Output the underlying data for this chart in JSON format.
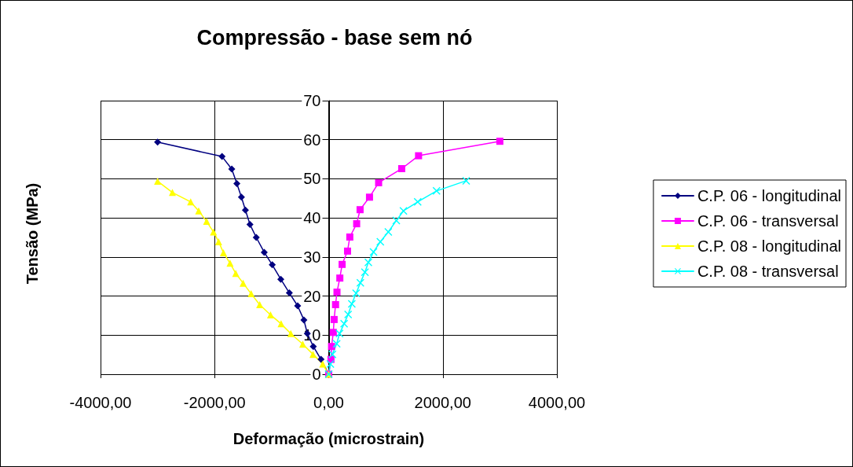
{
  "chart_data": {
    "type": "line",
    "title": "Compressão - base sem nó",
    "xlabel": "Deformação (microstrain)",
    "ylabel": "Tensão (MPa)",
    "xlim": [
      -4000,
      4000
    ],
    "xticks": [
      {
        "value": -4000,
        "label": "-4000,00"
      },
      {
        "value": -2000,
        "label": "-2000,00"
      },
      {
        "value": 0,
        "label": "0,00"
      },
      {
        "value": 2000,
        "label": "2000,00"
      },
      {
        "value": 4000,
        "label": "4000,00"
      }
    ],
    "ylim": [
      0,
      70
    ],
    "yticks": [
      0,
      10,
      20,
      30,
      40,
      50,
      60,
      70
    ],
    "grid": true,
    "legend": "right",
    "line_style": "solid",
    "series": [
      {
        "name": "C.P. 06 - longitudinal",
        "color": "#000080",
        "marker": "diamond",
        "x": [
          -3000,
          -1870,
          -1700,
          -1610,
          -1530,
          -1460,
          -1380,
          -1270,
          -1130,
          -990,
          -840,
          -690,
          -545,
          -435,
          -375,
          -270,
          -135,
          0
        ],
        "values": [
          59.4,
          55.7,
          52.5,
          48.8,
          45.3,
          42,
          38.3,
          35,
          31.2,
          28,
          24.3,
          20.8,
          17.5,
          13.9,
          10.4,
          7.1,
          3.8,
          0
        ]
      },
      {
        "name": "C.P. 06 - transversal",
        "color": "#ff00ff",
        "marker": "square",
        "x": [
          3000,
          1575,
          1280,
          875,
          715,
          550,
          490,
          370,
          330,
          235,
          195,
          145,
          120,
          95,
          80,
          50,
          40,
          0
        ],
        "values": [
          59.6,
          55.9,
          52.6,
          49,
          45.3,
          42.1,
          38.5,
          35.1,
          31.5,
          28.1,
          24.6,
          21,
          17.8,
          14,
          10.7,
          7.1,
          3.8,
          0
        ]
      },
      {
        "name": "C.P. 08 - longitudinal",
        "color": "#ffff00",
        "marker": "triangle",
        "x": [
          -3000,
          -2740,
          -2420,
          -2280,
          -2140,
          -2020,
          -1930,
          -1845,
          -1730,
          -1630,
          -1500,
          -1360,
          -1210,
          -1020,
          -835,
          -665,
          -455,
          -275,
          -105,
          0
        ],
        "values": [
          49.4,
          46.5,
          44.1,
          41.8,
          39.1,
          36.4,
          33.9,
          31.1,
          28.4,
          25.8,
          23.3,
          20.6,
          17.8,
          15.2,
          12.9,
          10.4,
          7.7,
          5.1,
          2.6,
          0
        ]
      },
      {
        "name": "C.P. 08 - transversal",
        "color": "#00ffff",
        "marker": "cross",
        "x": [
          2410,
          1890,
          1560,
          1310,
          1185,
          1045,
          905,
          785,
          695,
          635,
          555,
          480,
          405,
          340,
          270,
          190,
          140,
          65,
          30,
          0
        ],
        "values": [
          49.5,
          46.9,
          44.1,
          41.8,
          39.3,
          36.4,
          33.9,
          31.3,
          28.6,
          26.1,
          23.4,
          20.7,
          18,
          15.3,
          12.9,
          10.4,
          7.8,
          5.1,
          2.6,
          0
        ]
      }
    ]
  }
}
